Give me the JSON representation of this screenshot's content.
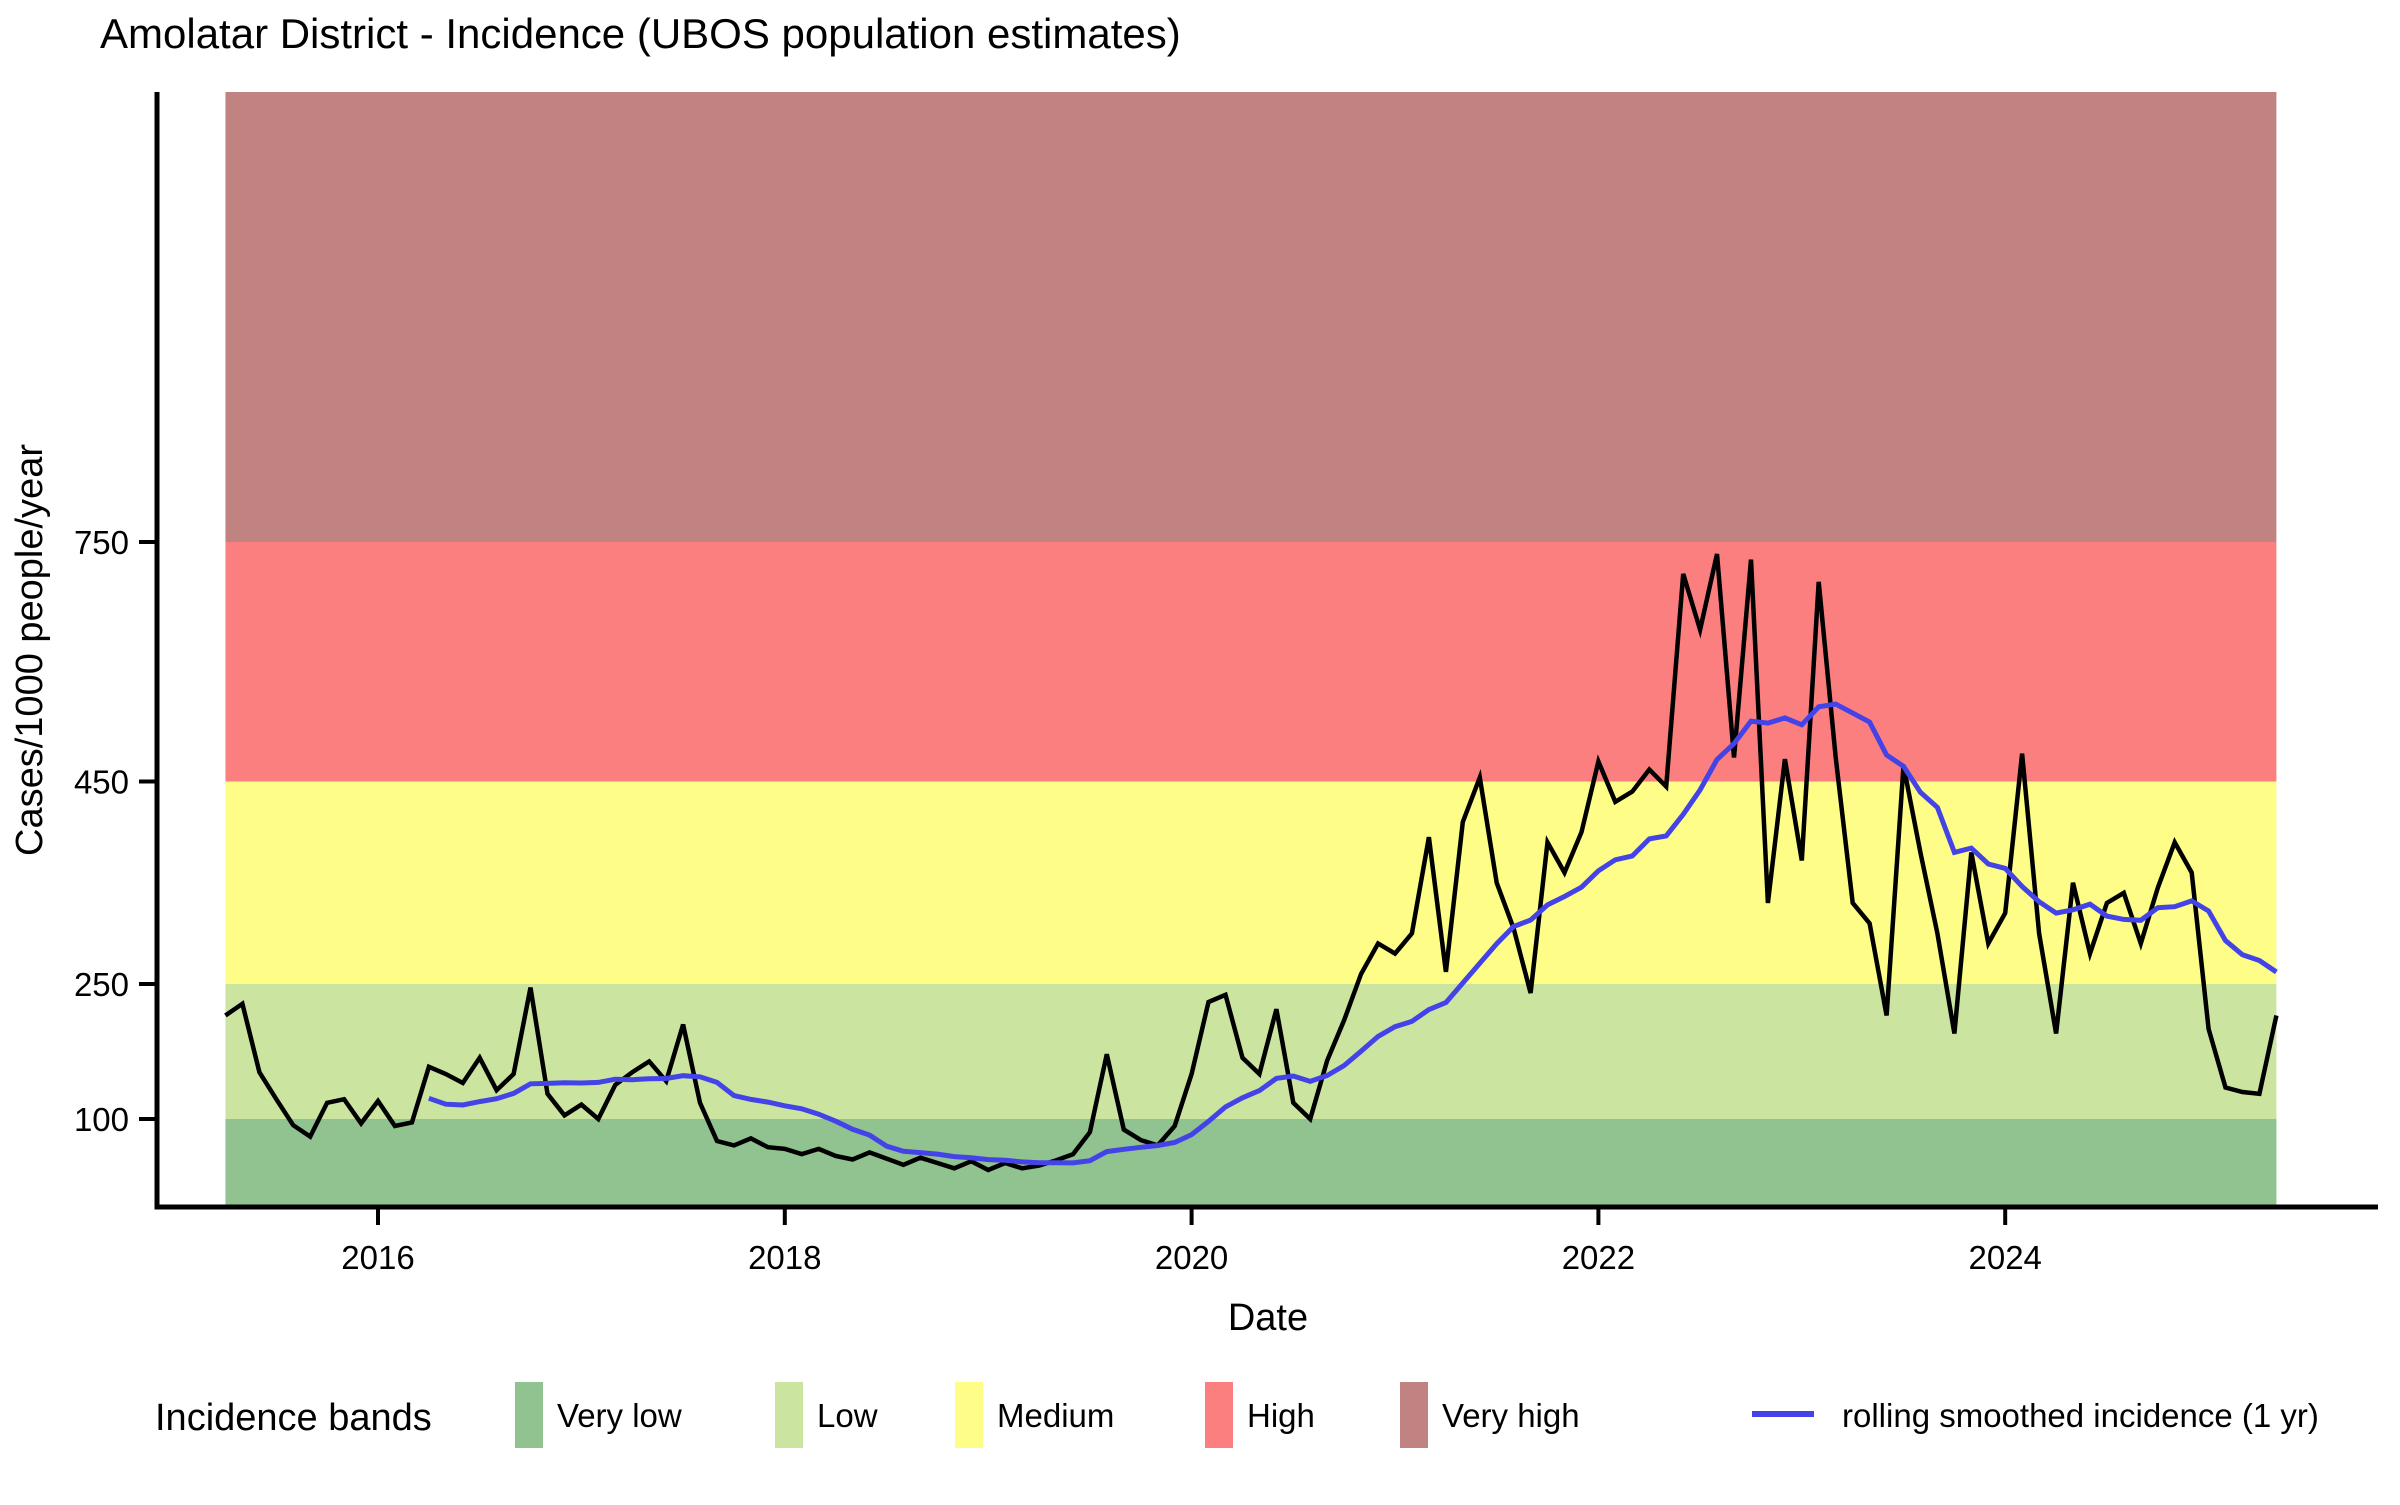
{
  "title": "Amolatar District - Incidence (UBOS population estimates)",
  "axes": {
    "x": {
      "label": "Date"
    },
    "y": {
      "label": "Cases/1000 people/year"
    }
  },
  "legend": {
    "title": "Incidence bands",
    "band_items": [
      "Very low",
      "Low",
      "Medium",
      "High",
      "Very high"
    ],
    "line_label": "rolling smoothed incidence (1 yr)",
    "line_color": "#4343e8"
  },
  "chart_data": {
    "type": "line",
    "title": "Amolatar District - Incidence (UBOS population estimates)",
    "xlabel": "Date",
    "ylabel": "Cases/1000 people/year",
    "x_ticks": [
      2016,
      2018,
      2020,
      2022,
      2024
    ],
    "y_ticks": [
      100,
      250,
      450,
      750
    ],
    "x_range_years": [
      2015.25,
      2025.42
    ],
    "grid": "off",
    "legend_position": "bottom",
    "bands": [
      {
        "label": "Very low",
        "min": 0,
        "max": 100,
        "color": "#90c390"
      },
      {
        "label": "Low",
        "min": 100,
        "max": 250,
        "color": "#cbe5a0"
      },
      {
        "label": "Medium",
        "min": 250,
        "max": 450,
        "color": "#fdfd87"
      },
      {
        "label": "High",
        "min": 450,
        "max": 750,
        "color": "#fb7f7f"
      },
      {
        "label": "Very high",
        "min": 750,
        "max": null,
        "color": "#c18282"
      }
    ],
    "series": [
      {
        "name": "monthly incidence",
        "color": "#000000",
        "stroke_width": 4.5,
        "start": "2015-04",
        "frequency": "monthly",
        "values": [
          215,
          228,
          152,
          122,
          93,
          80,
          118,
          122,
          95,
          120,
          92,
          96,
          158,
          150,
          140,
          168,
          132,
          150,
          246,
          128,
          104,
          116,
          100,
          138,
          152,
          164,
          142,
          205,
          118,
          75,
          70,
          78,
          68,
          66,
          60,
          66,
          58,
          54,
          62,
          55,
          48,
          56,
          50,
          44,
          52,
          42,
          50,
          44,
          47,
          53,
          60,
          85,
          172,
          88,
          76,
          70,
          92,
          150,
          230,
          238,
          168,
          150,
          222,
          118,
          100,
          165,
          210,
          260,
          290,
          280,
          300,
          395,
          262,
          410,
          455,
          350,
          305,
          240,
          390,
          360,
          400,
          475,
          430,
          440,
          465,
          445,
          710,
          640,
          735,
          480,
          728,
          330,
          478,
          372,
          700,
          480,
          330,
          310,
          215,
          470,
          380,
          300,
          195,
          380,
          290,
          320,
          485,
          300,
          195,
          350,
          280,
          330,
          340,
          290,
          345,
          390,
          360,
          200,
          135,
          130,
          128,
          215
        ]
      },
      {
        "name": "rolling smoothed incidence (1 yr)",
        "color": "#4343e8",
        "stroke_width": 5,
        "start": "2016-04",
        "frequency": "monthly",
        "values": [
          123.0,
          116.5,
          115.5,
          119.3,
          122.6,
          128.4,
          139.1,
          139.6,
          140.3,
          140.0,
          140.7,
          144.2,
          143.7,
          144.8,
          145.0,
          148.1,
          146.9,
          140.7,
          126.0,
          121.8,
          118.8,
          114.7,
          111.3,
          105.3,
          97.5,
          88.3,
          81.7,
          69.2,
          63.3,
          61.8,
          60.1,
          57.3,
          55.9,
          53.9,
          53.1,
          51.3,
          50.3,
          50.3,
          50.1,
          52.6,
          62.9,
          65.6,
          67.8,
          69.9,
          73.3,
          82.3,
          97.3,
          113.4,
          123.5,
          131.6,
          145.1,
          147.8,
          141.8,
          148.3,
          159.4,
          175.3,
          191.8,
          202.6,
          208.4,
          221.5,
          229.3,
          251.0,
          270.4,
          289.8,
          306.8,
          313.1,
          328.1,
          336.4,
          345.6,
          361.8,
          372.7,
          376.4,
          393.3,
          396.3,
          417.5,
          441.7,
          477.5,
          497.5,
          525.7,
          523.2,
          529.7,
          521.0,
          543.6,
          546.9,
          535.7,
          524.4,
          483.2,
          469.0,
          439.4,
          424.4,
          380.0,
          384.2,
          368.5,
          364.2,
          346.3,
          331.3,
          320.0,
          323.3,
          328.8,
          317.1,
          313.8,
          312.9,
          325.4,
          326.3,
          332.1,
          322.1,
          292.9,
          278.8,
          273.2,
          261.9
        ]
      }
    ]
  }
}
